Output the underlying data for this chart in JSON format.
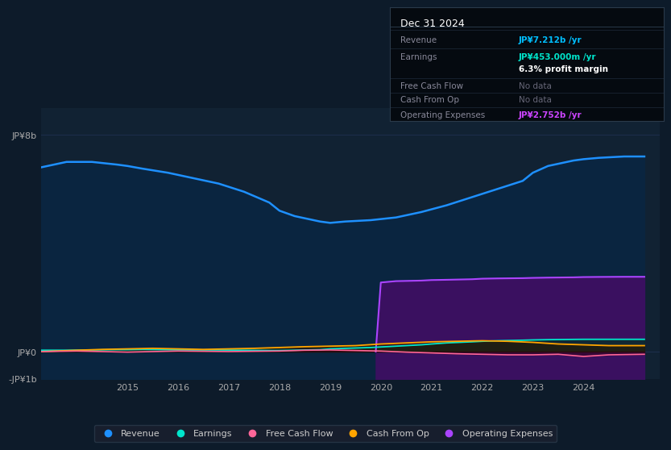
{
  "bg_color": "#0d1b2a",
  "plot_bg_color": "#112233",
  "title_box": {
    "date": "Dec 31 2024",
    "rows": [
      {
        "label": "Revenue",
        "value": "JP¥7.212b /yr",
        "value_color": "#00bfff",
        "nodata": false
      },
      {
        "label": "Earnings",
        "value": "JP¥453.000m /yr",
        "value_color": "#00e5cc",
        "nodata": false
      },
      {
        "label": "",
        "value": "6.3% profit margin",
        "value_color": "#ffffff",
        "bold": true,
        "nodata": false
      },
      {
        "label": "Free Cash Flow",
        "value": "No data",
        "value_color": "#666677",
        "nodata": true
      },
      {
        "label": "Cash From Op",
        "value": "No data",
        "value_color": "#666677",
        "nodata": true
      },
      {
        "label": "Operating Expenses",
        "value": "JP¥2.752b /yr",
        "value_color": "#cc44ff",
        "nodata": false
      }
    ]
  },
  "ylim": [
    -1.0,
    9.0
  ],
  "ytick_vals": [
    -1.0,
    0.0,
    8.0
  ],
  "ytick_labels": [
    "-JP¥1b",
    "JP¥0",
    "JP¥8b"
  ],
  "xticks": [
    2015,
    2016,
    2017,
    2018,
    2019,
    2020,
    2021,
    2022,
    2023,
    2024
  ],
  "xlim": [
    2013.3,
    2025.5
  ],
  "legend_items": [
    {
      "label": "Revenue",
      "color": "#1e90ff"
    },
    {
      "label": "Earnings",
      "color": "#00e5cc"
    },
    {
      "label": "Free Cash Flow",
      "color": "#ff6699"
    },
    {
      "label": "Cash From Op",
      "color": "#ffa500"
    },
    {
      "label": "Operating Expenses",
      "color": "#aa44ff"
    }
  ],
  "revenue_x": [
    2013.3,
    2013.8,
    2014.3,
    2014.8,
    2015.0,
    2015.3,
    2015.8,
    2016.3,
    2016.8,
    2017.3,
    2017.8,
    2018.0,
    2018.3,
    2018.8,
    2019.0,
    2019.3,
    2019.8,
    2020.3,
    2020.8,
    2021.3,
    2021.8,
    2022.3,
    2022.8,
    2023.0,
    2023.3,
    2023.8,
    2024.0,
    2024.3,
    2024.8,
    2025.2
  ],
  "revenue_y": [
    6.8,
    7.0,
    7.0,
    6.9,
    6.85,
    6.75,
    6.6,
    6.4,
    6.2,
    5.9,
    5.5,
    5.2,
    5.0,
    4.8,
    4.75,
    4.8,
    4.85,
    4.95,
    5.15,
    5.4,
    5.7,
    6.0,
    6.3,
    6.6,
    6.85,
    7.05,
    7.1,
    7.15,
    7.2,
    7.2
  ],
  "revenue_color": "#1e90ff",
  "revenue_fill": "#0a2540",
  "opex_x": [
    2019.9,
    2020.0,
    2020.3,
    2020.8,
    2021.0,
    2021.3,
    2021.8,
    2022.0,
    2022.3,
    2022.8,
    2023.0,
    2023.3,
    2023.8,
    2024.0,
    2024.3,
    2024.8,
    2025.2
  ],
  "opex_y": [
    0.0,
    2.55,
    2.6,
    2.62,
    2.64,
    2.65,
    2.67,
    2.69,
    2.7,
    2.71,
    2.72,
    2.73,
    2.74,
    2.75,
    2.755,
    2.76,
    2.76
  ],
  "opex_color": "#aa44ff",
  "opex_fill": "#3a1060",
  "earnings_x": [
    2013.3,
    2013.8,
    2014.3,
    2014.8,
    2015.0,
    2015.3,
    2015.8,
    2016.3,
    2016.8,
    2017.3,
    2017.8,
    2018.0,
    2018.3,
    2018.8,
    2019.0,
    2019.3,
    2019.8,
    2020.3,
    2020.8,
    2021.0,
    2021.3,
    2021.8,
    2022.0,
    2022.3,
    2022.8,
    2023.0,
    2023.3,
    2023.8,
    2024.0,
    2024.3,
    2024.8,
    2025.2
  ],
  "earnings_y": [
    0.05,
    0.05,
    0.06,
    0.07,
    0.07,
    0.08,
    0.07,
    0.06,
    0.06,
    0.05,
    0.04,
    0.04,
    0.05,
    0.07,
    0.1,
    0.12,
    0.15,
    0.2,
    0.25,
    0.28,
    0.32,
    0.36,
    0.38,
    0.4,
    0.42,
    0.43,
    0.44,
    0.45,
    0.453,
    0.453,
    0.453,
    0.453
  ],
  "earnings_color": "#00e5cc",
  "earnings_fill": "#003322",
  "fcf_x": [
    2013.3,
    2014.0,
    2014.5,
    2015.0,
    2015.5,
    2016.0,
    2016.5,
    2017.0,
    2017.5,
    2018.0,
    2018.5,
    2019.0,
    2019.5,
    2020.0,
    2020.5,
    2021.0,
    2021.5,
    2022.0,
    2022.5,
    2023.0,
    2023.5,
    2024.0,
    2024.5,
    2025.2
  ],
  "fcf_y": [
    0.0,
    0.02,
    0.0,
    -0.02,
    0.0,
    0.02,
    0.01,
    0.0,
    0.01,
    0.02,
    0.05,
    0.06,
    0.04,
    0.02,
    -0.02,
    -0.05,
    -0.08,
    -0.1,
    -0.12,
    -0.12,
    -0.1,
    -0.18,
    -0.12,
    -0.1
  ],
  "fcf_color": "#ff6699",
  "fcf_fill": "#330011",
  "cfop_x": [
    2013.3,
    2014.0,
    2014.5,
    2015.0,
    2015.5,
    2016.0,
    2016.5,
    2017.0,
    2017.5,
    2018.0,
    2018.5,
    2019.0,
    2019.5,
    2020.0,
    2020.5,
    2021.0,
    2021.5,
    2022.0,
    2022.5,
    2023.0,
    2023.5,
    2024.0,
    2024.5,
    2025.2
  ],
  "cfop_y": [
    0.0,
    0.05,
    0.08,
    0.1,
    0.12,
    0.1,
    0.08,
    0.1,
    0.12,
    0.15,
    0.18,
    0.2,
    0.22,
    0.28,
    0.32,
    0.36,
    0.38,
    0.4,
    0.38,
    0.34,
    0.28,
    0.25,
    0.22,
    0.22
  ],
  "cfop_color": "#ffa500",
  "cfop_fill": "#2a1800"
}
